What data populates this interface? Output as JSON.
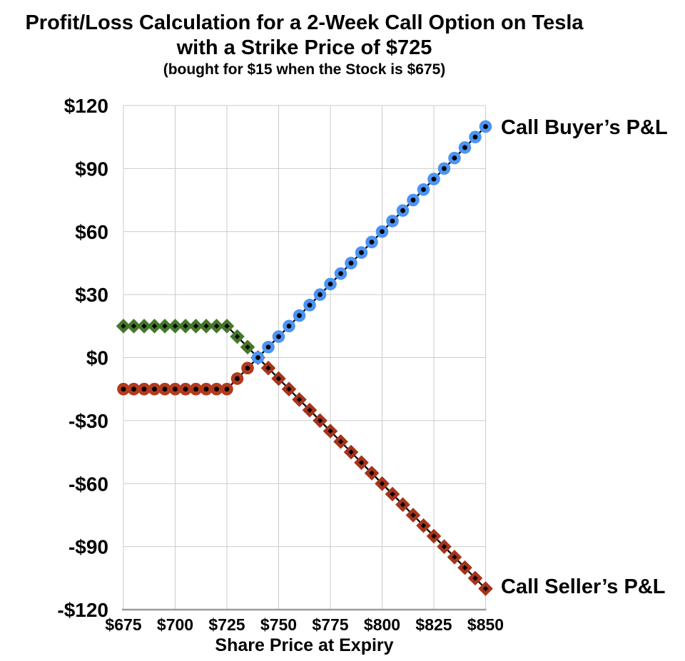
{
  "chart_data": {
    "type": "line",
    "title_lines": [
      "Profit/Loss Calculation for a 2-Week Call Option on Tesla",
      "with a Strike Price of $725",
      "(bought for $15 when the Stock is $675)"
    ],
    "xlabel": "Share Price at Expiry",
    "ylabel": "",
    "xlim": [
      675,
      850
    ],
    "ylim": [
      -120,
      120
    ],
    "grid": true,
    "legend_position": "inline-annotations",
    "x": [
      675,
      680,
      685,
      690,
      695,
      700,
      705,
      710,
      715,
      720,
      725,
      730,
      735,
      740,
      745,
      750,
      755,
      760,
      765,
      770,
      775,
      780,
      785,
      790,
      795,
      800,
      805,
      810,
      815,
      820,
      825,
      830,
      835,
      840,
      845,
      850
    ],
    "series": [
      {
        "name": "Call Seller’s P&L",
        "marker": "diamond",
        "values": [
          15,
          15,
          15,
          15,
          15,
          15,
          15,
          15,
          15,
          15,
          15,
          10,
          5,
          0,
          -5,
          -10,
          -15,
          -20,
          -25,
          -30,
          -35,
          -40,
          -45,
          -50,
          -55,
          -60,
          -65,
          -70,
          -75,
          -80,
          -85,
          -90,
          -95,
          -100,
          -105,
          -110
        ],
        "color_profit": "#45772B",
        "color_loss": "#A6331B",
        "zero_color": "loss"
      },
      {
        "name": "Call Buyer’s P&L",
        "marker": "circle",
        "values": [
          -15,
          -15,
          -15,
          -15,
          -15,
          -15,
          -15,
          -15,
          -15,
          -15,
          -15,
          -10,
          -5,
          0,
          5,
          10,
          15,
          20,
          25,
          30,
          35,
          40,
          45,
          50,
          55,
          60,
          65,
          70,
          75,
          80,
          85,
          90,
          95,
          100,
          105,
          110
        ],
        "color_profit": "#4D94F2",
        "color_loss": "#B23A1F",
        "zero_color": "profit"
      }
    ],
    "x_ticks": {
      "values": [
        675,
        700,
        725,
        750,
        775,
        800,
        825,
        850
      ],
      "labels": [
        "$675",
        "$700",
        "$725",
        "$750",
        "$775",
        "$800",
        "$825",
        "$850"
      ]
    },
    "y_ticks": {
      "values": [
        120,
        90,
        60,
        30,
        0,
        -30,
        -60,
        -90,
        -120
      ],
      "labels": [
        "$120",
        "$90",
        "$60",
        "$30",
        "$0",
        "-$30",
        "-$60",
        "-$90",
        "-$120"
      ]
    },
    "style": {
      "grid_color": "#CBCBCB",
      "axis_color": "#9B9B9B",
      "connector_color": "#0A0A0A",
      "marker_center_color": "#000000",
      "text_color": "#000000",
      "background": "#FFFFFF"
    },
    "notes": {
      "breakeven_point": "$740 at $0",
      "strike_price": 725,
      "premium": 15
    }
  }
}
